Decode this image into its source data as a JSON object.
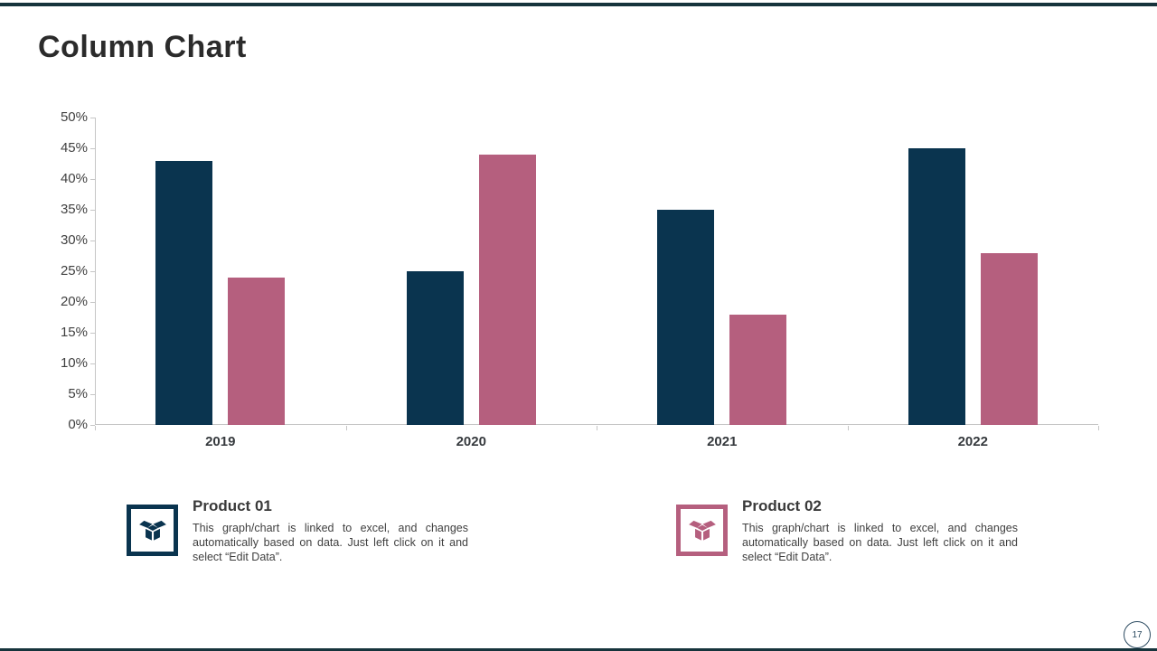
{
  "page": {
    "title": "Column Chart",
    "page_number": "17"
  },
  "colors": {
    "accent_rule": "#16343c",
    "series1": "#0a344f",
    "series2": "#b55f7e",
    "axis": "#c6c6c6"
  },
  "chart_data": {
    "type": "bar",
    "title": "Column Chart",
    "categories": [
      "2019",
      "2020",
      "2021",
      "2022"
    ],
    "series": [
      {
        "name": "Product 01",
        "color": "#0a344f",
        "values": [
          43,
          25,
          35,
          45
        ]
      },
      {
        "name": "Product 02",
        "color": "#b55f7e",
        "values": [
          24,
          44,
          18,
          28
        ]
      }
    ],
    "xlabel": "",
    "ylabel": "",
    "ylim": [
      0,
      50
    ],
    "y_tick_labels": [
      "0%",
      "5%",
      "10%",
      "15%",
      "20%",
      "25%",
      "30%",
      "35%",
      "40%",
      "45%",
      "50%"
    ],
    "grid": false,
    "legend_position": "bottom"
  },
  "legend": {
    "items": [
      {
        "title": "Product 01",
        "description": "This graph/chart is linked to excel, and changes automatically based on data. Just left click on it and select “Edit Data”."
      },
      {
        "title": "Product 02",
        "description": "This graph/chart is linked to excel, and changes automatically based on data. Just left click on it and select “Edit Data”."
      }
    ]
  }
}
